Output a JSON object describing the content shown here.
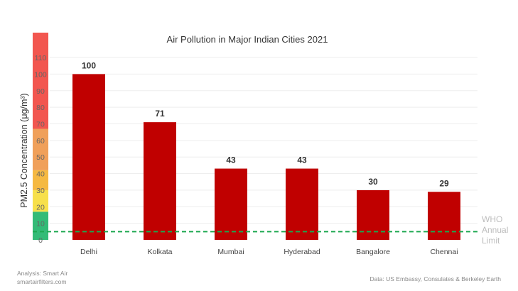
{
  "chart_data": {
    "type": "bar",
    "title": "Air Pollution in Major Indian Cities 2021",
    "ylabel": "PM2.5 Concentration  (μg/m³)",
    "xlabel": "",
    "categories": [
      "Delhi",
      "Kolkata",
      "Mumbai",
      "Hyderabad",
      "Bangalore",
      "Chennai"
    ],
    "values": [
      100,
      71,
      43,
      43,
      30,
      29
    ],
    "value_labels": [
      "100",
      "71",
      "43",
      "43",
      "30",
      "29"
    ],
    "ylim": [
      0,
      125
    ],
    "yticks": [
      0,
      10,
      20,
      30,
      40,
      50,
      60,
      70,
      80,
      90,
      100,
      110
    ],
    "grid": true,
    "bar_color": "#c00000",
    "severity_bands": [
      {
        "from": 0,
        "to": 17,
        "color": "#33bb77"
      },
      {
        "from": 17,
        "to": 30,
        "color": "#f7e04b"
      },
      {
        "from": 30,
        "to": 42,
        "color": "#f5b942"
      },
      {
        "from": 42,
        "to": 67,
        "color": "#f0a05a"
      },
      {
        "from": 67,
        "to": 125,
        "color": "#f2564f"
      }
    ],
    "reference_line": {
      "value": 5,
      "label_lines": [
        "WHO",
        "Annual",
        "Limit"
      ],
      "color": "#1ba84f"
    }
  },
  "footer": {
    "analysis": "Analysis: Smart Air",
    "website": "smartairfilters.com",
    "source": "Data: US Embassy, Consulates & Berkeley Earth"
  }
}
